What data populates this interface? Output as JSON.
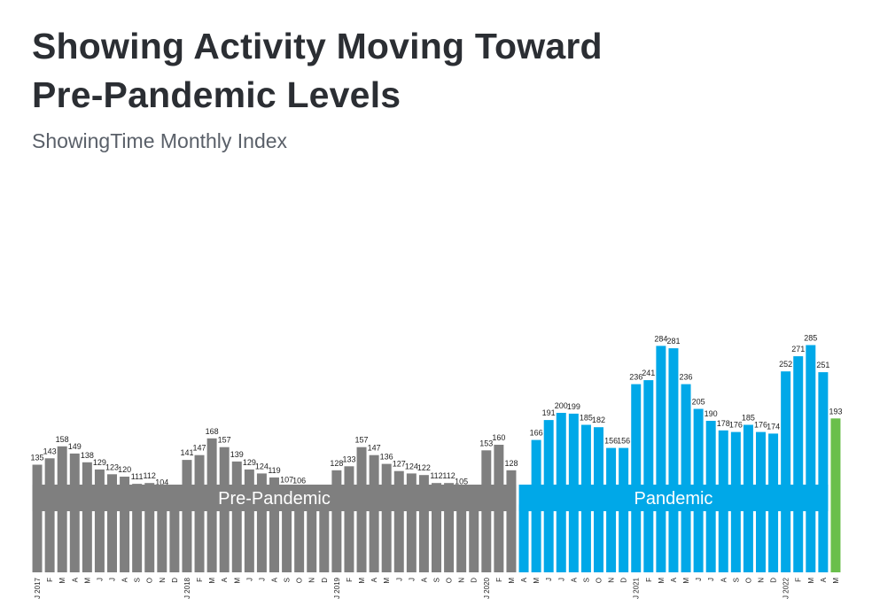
{
  "title_lines": [
    "Showing Activity Moving Toward",
    "Pre-Pandemic Levels"
  ],
  "subtitle": "ShowingTime Monthly Index",
  "colors": {
    "pre": "#7f7f7f",
    "pandemic": "#00a8e8",
    "latest": "#6abf4b"
  },
  "chart_data": {
    "type": "bar",
    "title": "Showing Activity Moving Toward Pre-Pandemic Levels",
    "subtitle": "ShowingTime Monthly Index",
    "xlabel": "",
    "ylabel": "",
    "ylim": [
      0,
      300
    ],
    "grid": false,
    "categories": [
      "J 2017",
      "F",
      "M",
      "A",
      "M",
      "J",
      "J",
      "A",
      "S",
      "O",
      "N",
      "D",
      "J 2018",
      "F",
      "M",
      "A",
      "M",
      "J",
      "J",
      "A",
      "S",
      "O",
      "N",
      "D",
      "J 2019",
      "F",
      "M",
      "A",
      "M",
      "J",
      "J",
      "A",
      "S",
      "O",
      "N",
      "D",
      "J 2020",
      "F",
      "M",
      "A",
      "M",
      "J",
      "J",
      "A",
      "S",
      "O",
      "N",
      "D",
      "J 2021",
      "F",
      "M",
      "A",
      "M",
      "J",
      "J",
      "A",
      "S",
      "O",
      "N",
      "D",
      "J 2022",
      "F",
      "M",
      "A",
      "M"
    ],
    "values": [
      135,
      143,
      158,
      149,
      138,
      129,
      123,
      120,
      111,
      112,
      104,
      95,
      141,
      147,
      168,
      157,
      139,
      129,
      124,
      119,
      107,
      106,
      95,
      88,
      128,
      133,
      157,
      147,
      136,
      127,
      124,
      122,
      112,
      112,
      105,
      96,
      153,
      160,
      128,
      85,
      166,
      191,
      200,
      199,
      185,
      182,
      156,
      156,
      236,
      241,
      284,
      281,
      236,
      205,
      190,
      178,
      176,
      185,
      176,
      174,
      252,
      271,
      285,
      251,
      193
    ],
    "periods": [
      {
        "name": "Pre-Pandemic",
        "start": 0,
        "end": 38,
        "color": "#7f7f7f"
      },
      {
        "name": "Pandemic",
        "start": 39,
        "end": 63,
        "color": "#00a8e8"
      },
      {
        "name": "",
        "start": 64,
        "end": 64,
        "color": "#6abf4b"
      }
    ]
  }
}
